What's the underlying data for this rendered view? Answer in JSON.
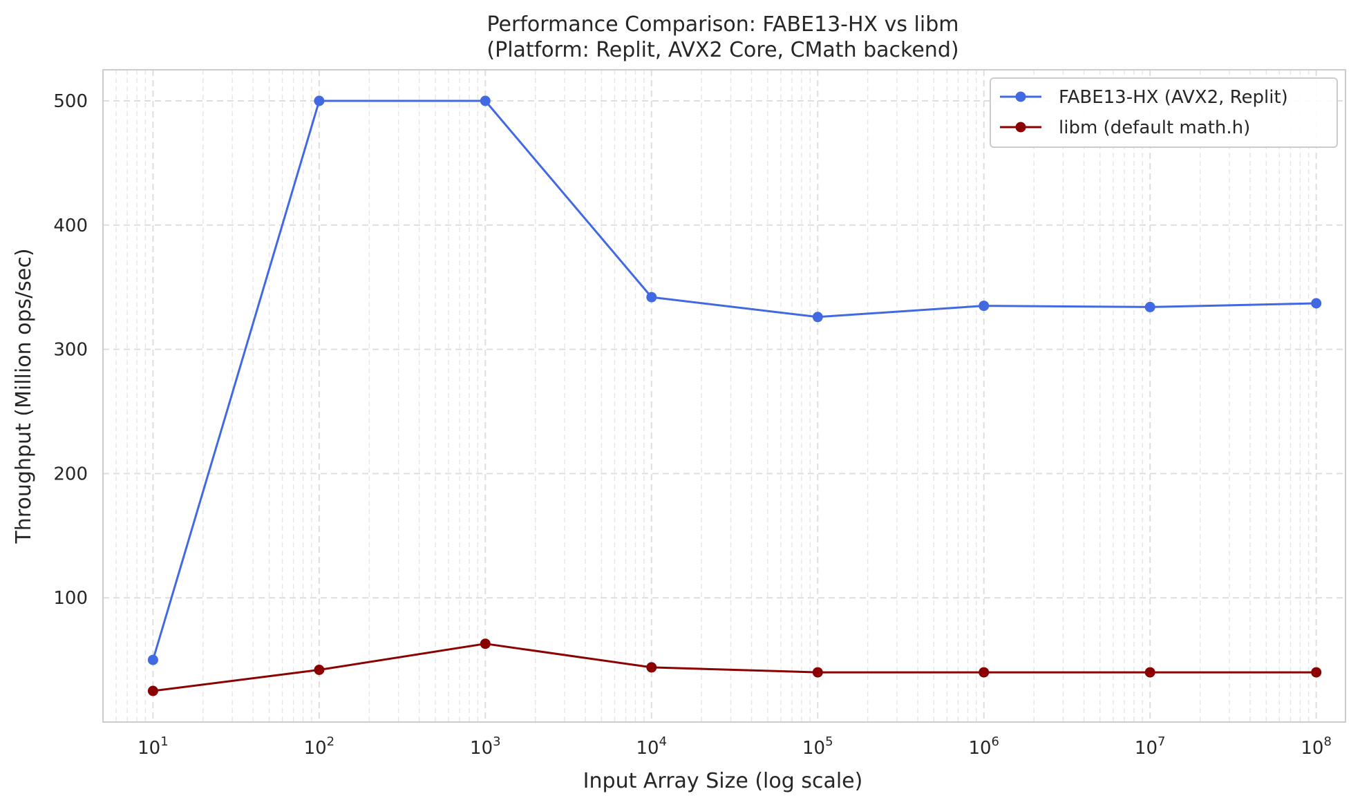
{
  "chart_data": {
    "type": "line",
    "title": "Performance Comparison: FABE13-HX vs libm",
    "subtitle": "(Platform: Replit, AVX2 Core, CMath backend)",
    "xlabel": "Input Array Size (log scale)",
    "ylabel": "Throughput (Million ops/sec)",
    "x_scale": "log",
    "xlim": [
      5,
      150000000
    ],
    "ylim": [
      0,
      525
    ],
    "x_ticks": [
      {
        "value": 10,
        "base": "10",
        "exp": "1"
      },
      {
        "value": 100,
        "base": "10",
        "exp": "2"
      },
      {
        "value": 1000,
        "base": "10",
        "exp": "3"
      },
      {
        "value": 10000,
        "base": "10",
        "exp": "4"
      },
      {
        "value": 100000,
        "base": "10",
        "exp": "5"
      },
      {
        "value": 1000000,
        "base": "10",
        "exp": "6"
      },
      {
        "value": 10000000,
        "base": "10",
        "exp": "7"
      },
      {
        "value": 100000000,
        "base": "10",
        "exp": "8"
      }
    ],
    "y_ticks": [
      {
        "value": 100,
        "label": "100"
      },
      {
        "value": 200,
        "label": "200"
      },
      {
        "value": 300,
        "label": "300"
      },
      {
        "value": 400,
        "label": "400"
      },
      {
        "value": 500,
        "label": "500"
      }
    ],
    "grid": true,
    "legend_position": "top-right",
    "x": [
      10,
      100,
      1000,
      10000,
      100000,
      1000000,
      10000000,
      100000000
    ],
    "series": [
      {
        "name": "FABE13-HX (AVX2, Replit)",
        "color": "#4169e1",
        "values": [
          50,
          500,
          500,
          342,
          326,
          335,
          334,
          337
        ]
      },
      {
        "name": "libm (default math.h)",
        "color": "#8b0000",
        "values": [
          25,
          42,
          63,
          44,
          40,
          40,
          40,
          40
        ]
      }
    ]
  }
}
